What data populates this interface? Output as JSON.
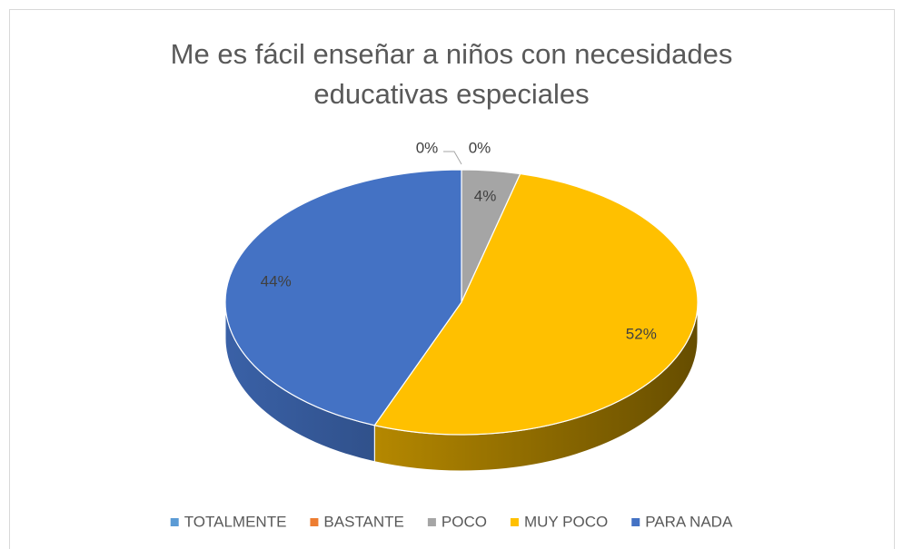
{
  "chart_data": {
    "type": "pie",
    "title": "Me es fácil enseñar a niños con necesidades educativas especiales",
    "categories": [
      "TOTALMENTE",
      "BASTANTE",
      "POCO",
      "MUY POCO",
      "PARA NADA"
    ],
    "values": [
      0,
      0,
      4,
      52,
      44
    ],
    "value_labels": [
      "0%",
      "0%",
      "4%",
      "52%",
      "44%"
    ],
    "colors": [
      "#5b9bd5",
      "#ed7d31",
      "#a5a5a5",
      "#ffc000",
      "#4472c4"
    ],
    "legend": "bottom"
  }
}
